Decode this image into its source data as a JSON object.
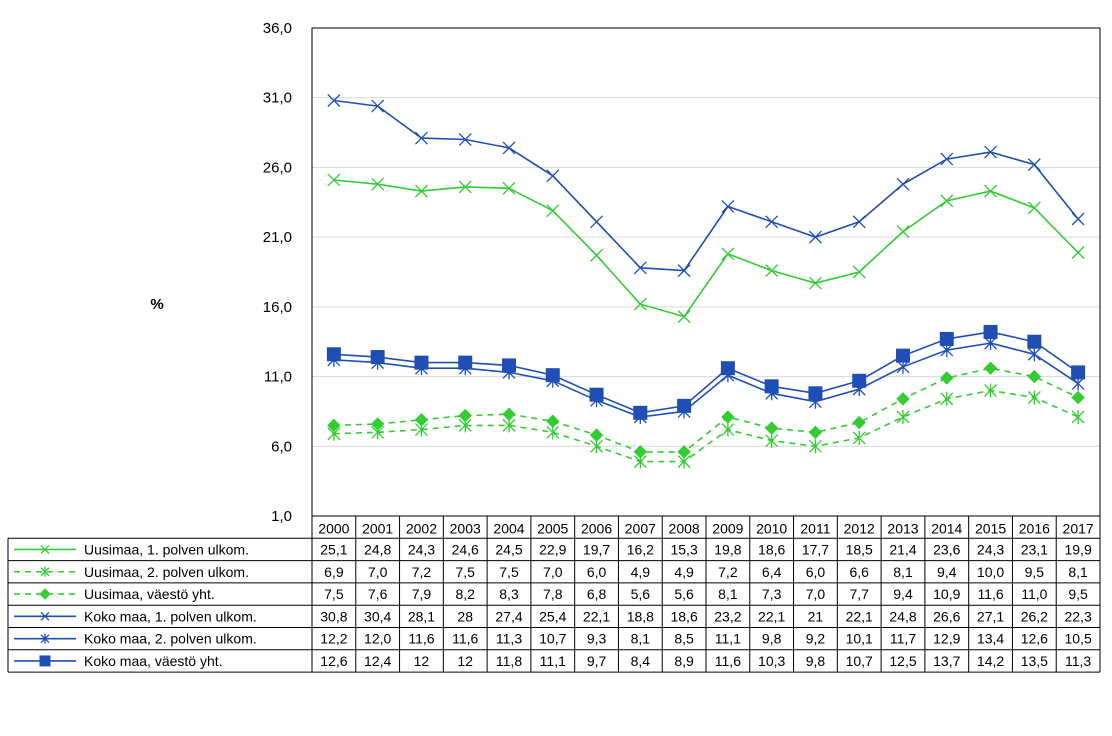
{
  "chart_data": {
    "type": "line",
    "ylabel": "%",
    "ylim": [
      1.0,
      36.0
    ],
    "yticks": [
      "1,0",
      "6,0",
      "11,0",
      "16,0",
      "21,0",
      "26,0",
      "31,0",
      "36,0"
    ],
    "grid": "horizontal",
    "legend": "data-table-below",
    "categories": [
      "2000",
      "2001",
      "2002",
      "2003",
      "2004",
      "2005",
      "2006",
      "2007",
      "2008",
      "2009",
      "2010",
      "2011",
      "2012",
      "2013",
      "2014",
      "2015",
      "2016",
      "2017"
    ],
    "series": [
      {
        "name": "Uusimaa, 1. polven ulkom.",
        "color": "#33cc33",
        "dash": false,
        "marker": "x-cross",
        "values": [
          25.1,
          24.8,
          24.3,
          24.6,
          24.5,
          22.9,
          19.7,
          16.2,
          15.3,
          19.8,
          18.6,
          17.7,
          18.5,
          21.4,
          23.6,
          24.3,
          23.1,
          19.9
        ],
        "labels": [
          "25,1",
          "24,8",
          "24,3",
          "24,6",
          "24,5",
          "22,9",
          "19,7",
          "16,2",
          "15,3",
          "19,8",
          "18,6",
          "17,7",
          "18,5",
          "21,4",
          "23,6",
          "24,3",
          "23,1",
          "19,9"
        ]
      },
      {
        "name": "Uusimaa, 2. polven ulkom.",
        "color": "#33cc33",
        "dash": true,
        "marker": "asterisk",
        "values": [
          6.9,
          7.0,
          7.2,
          7.5,
          7.5,
          7.0,
          6.0,
          4.9,
          4.9,
          7.2,
          6.4,
          6.0,
          6.6,
          8.1,
          9.4,
          10.0,
          9.5,
          8.1
        ],
        "labels": [
          "6,9",
          "7,0",
          "7,2",
          "7,5",
          "7,5",
          "7,0",
          "6,0",
          "4,9",
          "4,9",
          "7,2",
          "6,4",
          "6,0",
          "6,6",
          "8,1",
          "9,4",
          "10,0",
          "9,5",
          "8,1"
        ]
      },
      {
        "name": "Uusimaa, väestö yht.",
        "color": "#33cc33",
        "dash": true,
        "marker": "diamond",
        "values": [
          7.5,
          7.6,
          7.9,
          8.2,
          8.3,
          7.8,
          6.8,
          5.6,
          5.6,
          8.1,
          7.3,
          7.0,
          7.7,
          9.4,
          10.9,
          11.6,
          11.0,
          9.5
        ],
        "labels": [
          "7,5",
          "7,6",
          "7,9",
          "8,2",
          "8,3",
          "7,8",
          "6,8",
          "5,6",
          "5,6",
          "8,1",
          "7,3",
          "7,0",
          "7,7",
          "9,4",
          "10,9",
          "11,6",
          "11,0",
          "9,5"
        ]
      },
      {
        "name": "Koko maa, 1. polven ulkom.",
        "color": "#1f4fb4",
        "dash": false,
        "marker": "x-cross",
        "values": [
          30.8,
          30.4,
          28.1,
          28,
          27.4,
          25.4,
          22.1,
          18.8,
          18.6,
          23.2,
          22.1,
          21,
          22.1,
          24.8,
          26.6,
          27.1,
          26.2,
          22.3
        ],
        "labels": [
          "30,8",
          "30,4",
          "28,1",
          "28",
          "27,4",
          "25,4",
          "22,1",
          "18,8",
          "18,6",
          "23,2",
          "22,1",
          "21",
          "22,1",
          "24,8",
          "26,6",
          "27,1",
          "26,2",
          "22,3"
        ]
      },
      {
        "name": "Koko maa, 2. polven ulkom.",
        "color": "#1f4fb4",
        "dash": false,
        "marker": "asterisk",
        "values": [
          12.2,
          12.0,
          11.6,
          11.6,
          11.3,
          10.7,
          9.3,
          8.1,
          8.5,
          11.1,
          9.8,
          9.2,
          10.1,
          11.7,
          12.9,
          13.4,
          12.6,
          10.5
        ],
        "labels": [
          "12,2",
          "12,0",
          "11,6",
          "11,6",
          "11,3",
          "10,7",
          "9,3",
          "8,1",
          "8,5",
          "11,1",
          "9,8",
          "9,2",
          "10,1",
          "11,7",
          "12,9",
          "13,4",
          "12,6",
          "10,5"
        ]
      },
      {
        "name": "Koko maa, väestö yht.",
        "color": "#1f4fb4",
        "dash": false,
        "marker": "square",
        "values": [
          12.6,
          12.4,
          12,
          12,
          11.8,
          11.1,
          9.7,
          8.4,
          8.9,
          11.6,
          10.3,
          9.8,
          10.7,
          12.5,
          13.7,
          14.2,
          13.5,
          11.3
        ],
        "labels": [
          "12,6",
          "12,4",
          "12",
          "12",
          "11,8",
          "11,1",
          "9,7",
          "8,4",
          "8,9",
          "11,6",
          "10,3",
          "9,8",
          "10,7",
          "12,5",
          "13,7",
          "14,2",
          "13,5",
          "11,3"
        ]
      }
    ]
  }
}
